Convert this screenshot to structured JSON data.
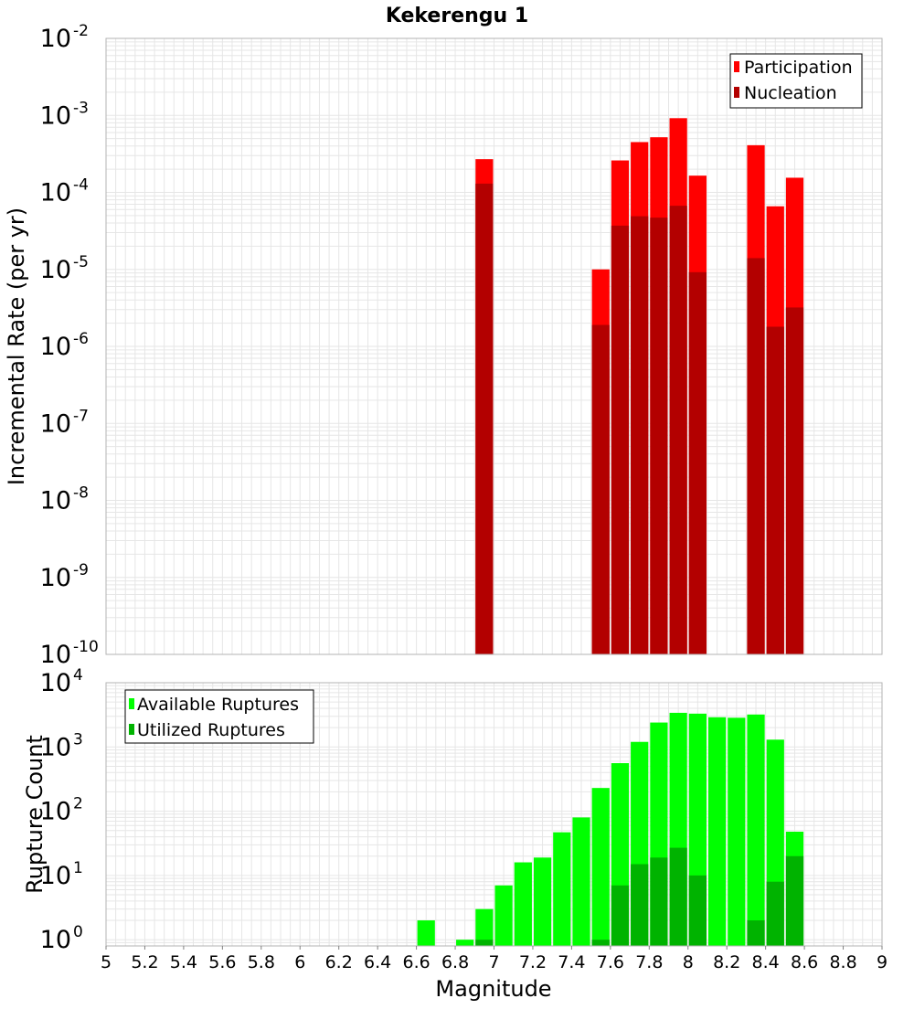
{
  "colors": {
    "participation": "#ff0000",
    "nucleation": "#b30000",
    "available": "#00ff00",
    "utilized": "#00b300",
    "grid": "#e6e6e6",
    "frame": "#b3b3b3"
  },
  "chart_data": [
    {
      "type": "bar",
      "title": "Kekerengu 1",
      "xlabel": "",
      "ylabel": "Incremental Rate (per yr)",
      "yscale": "log",
      "ylim": [
        1e-10,
        0.01
      ],
      "xlim": [
        5,
        9
      ],
      "bin_width": 0.1,
      "grid": true,
      "legend": "top-right",
      "series": [
        {
          "name": "Participation",
          "color": "#ff0000",
          "x": [
            6.95,
            7.55,
            7.65,
            7.75,
            7.85,
            7.95,
            8.05,
            8.35,
            8.45,
            8.55
          ],
          "values": [
            0.00027,
            1e-05,
            0.00026,
            0.00045,
            0.00052,
            0.00092,
            0.000165,
            0.00041,
            6.6e-05,
            0.000155
          ]
        },
        {
          "name": "Nucleation",
          "color": "#b30000",
          "x": [
            6.95,
            7.55,
            7.65,
            7.75,
            7.85,
            7.95,
            8.05,
            8.35,
            8.45,
            8.55
          ],
          "values": [
            0.00013,
            1.9e-06,
            3.7e-05,
            4.9e-05,
            4.7e-05,
            6.7e-05,
            9.2e-06,
            1.4e-05,
            1.8e-06,
            3.2e-06
          ]
        }
      ],
      "ytick_labels": [
        {
          "base": "10",
          "exp": "-10"
        },
        {
          "base": "10",
          "exp": "-9"
        },
        {
          "base": "10",
          "exp": "-8"
        },
        {
          "base": "10",
          "exp": "-7"
        },
        {
          "base": "10",
          "exp": "-6"
        },
        {
          "base": "10",
          "exp": "-5"
        },
        {
          "base": "10",
          "exp": "-4"
        },
        {
          "base": "10",
          "exp": "-3"
        },
        {
          "base": "10",
          "exp": "-2"
        }
      ]
    },
    {
      "type": "bar",
      "title": "",
      "xlabel": "Magnitude",
      "ylabel": "Rupture Count",
      "yscale": "log",
      "ylim": [
        0.8,
        10000
      ],
      "xlim": [
        5,
        9
      ],
      "bin_width": 0.1,
      "grid": true,
      "legend": "top-left",
      "series": [
        {
          "name": "Available Ruptures",
          "color": "#00ff00",
          "x": [
            6.65,
            6.85,
            6.95,
            7.05,
            7.15,
            7.25,
            7.35,
            7.45,
            7.55,
            7.65,
            7.75,
            7.85,
            7.95,
            8.05,
            8.15,
            8.25,
            8.35,
            8.45,
            8.55
          ],
          "values": [
            2,
            1,
            3,
            7,
            16,
            19,
            47,
            80,
            230,
            560,
            1200,
            2400,
            3400,
            3300,
            2900,
            2850,
            3200,
            1300,
            48
          ]
        },
        {
          "name": "Utilized Ruptures",
          "color": "#00b300",
          "x": [
            6.95,
            7.55,
            7.65,
            7.75,
            7.85,
            7.95,
            8.05,
            8.35,
            8.45,
            8.55
          ],
          "values": [
            1,
            1,
            7,
            15,
            19,
            27,
            10,
            2,
            8,
            20
          ]
        }
      ],
      "ytick_labels": [
        {
          "base": "10",
          "exp": "0"
        },
        {
          "base": "10",
          "exp": "1"
        },
        {
          "base": "10",
          "exp": "2"
        },
        {
          "base": "10",
          "exp": "3"
        },
        {
          "base": "10",
          "exp": "4"
        }
      ],
      "xtick_labels": [
        "5",
        "5.2",
        "5.4",
        "5.6",
        "5.8",
        "6",
        "6.2",
        "6.4",
        "6.6",
        "6.8",
        "7",
        "7.2",
        "7.4",
        "7.6",
        "7.8",
        "8",
        "8.2",
        "8.4",
        "8.6",
        "8.8",
        "9"
      ]
    }
  ]
}
